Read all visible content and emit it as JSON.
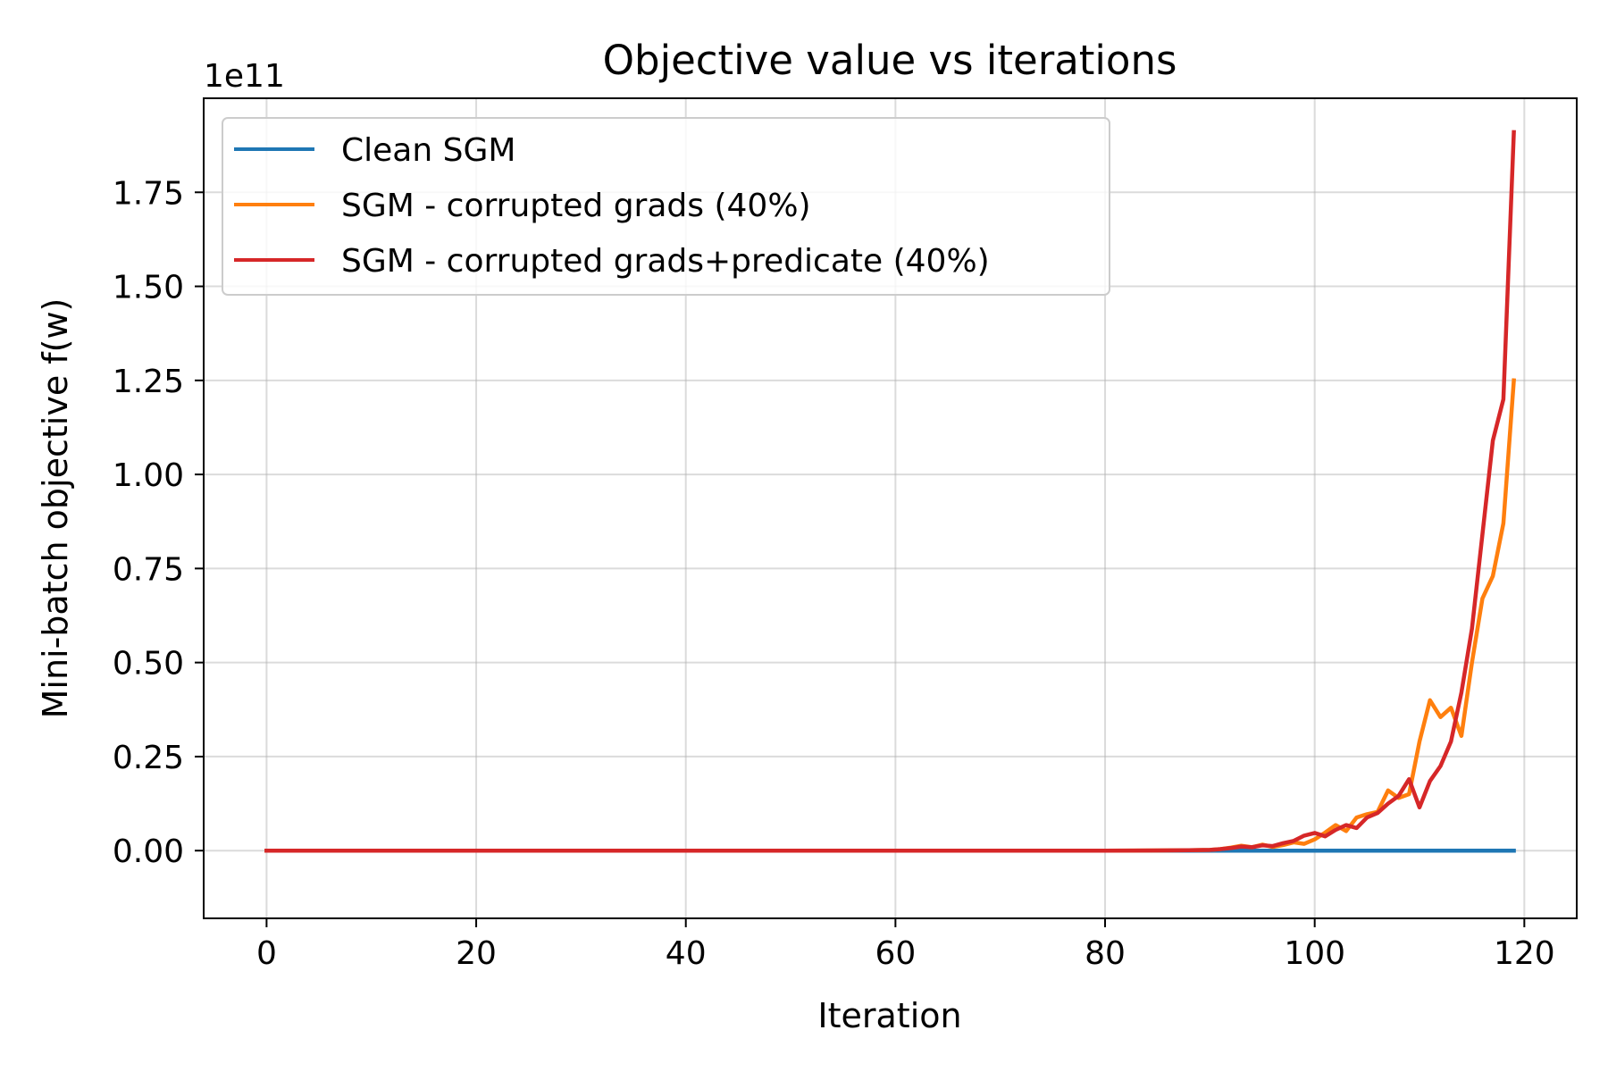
{
  "chart_data": {
    "type": "line",
    "title": "Objective value vs iterations",
    "xlabel": "Iteration",
    "ylabel": "Mini-batch objective f(w)",
    "y_offset_label": "1e11",
    "y_scale": "1e11",
    "xlim": [
      -6,
      125
    ],
    "ylim": [
      -0.18,
      2.0
    ],
    "xticks": [
      0,
      20,
      40,
      60,
      80,
      100,
      120
    ],
    "yticks": [
      0.0,
      0.25,
      0.5,
      0.75,
      1.0,
      1.25,
      1.5,
      1.75
    ],
    "xtick_labels": [
      "0",
      "20",
      "40",
      "60",
      "80",
      "100",
      "120"
    ],
    "ytick_labels": [
      "0.00",
      "0.25",
      "0.50",
      "0.75",
      "1.00",
      "1.25",
      "1.50",
      "1.75"
    ],
    "grid": true,
    "legend_position": "top-left",
    "series": [
      {
        "name": "Clean SGM",
        "color": "#1f77b4",
        "x": [
          0,
          119
        ],
        "y": [
          0,
          0
        ]
      },
      {
        "name": "SGM - corrupted grads (40%)",
        "color": "#ff7f0e",
        "x": [
          0,
          80,
          85,
          88,
          90,
          91,
          92,
          93,
          94,
          95,
          96,
          97,
          98,
          99,
          100,
          101,
          102,
          103,
          104,
          105,
          106,
          107,
          108,
          109,
          110,
          111,
          112,
          113,
          114,
          115,
          116,
          117,
          118,
          119
        ],
        "y": [
          0,
          0,
          0.0005,
          0.001,
          0.002,
          0.004,
          0.008,
          0.013,
          0.009,
          0.016,
          0.01,
          0.015,
          0.022,
          0.018,
          0.03,
          0.048,
          0.068,
          0.052,
          0.088,
          0.097,
          0.103,
          0.16,
          0.14,
          0.15,
          0.29,
          0.4,
          0.355,
          0.38,
          0.305,
          0.5,
          0.67,
          0.73,
          0.87,
          1.25
        ]
      },
      {
        "name": "SGM - corrupted grads+predicate (40%)",
        "color": "#d62728",
        "x": [
          0,
          80,
          85,
          88,
          90,
          91,
          92,
          93,
          94,
          95,
          96,
          97,
          98,
          99,
          100,
          101,
          102,
          103,
          104,
          105,
          106,
          107,
          108,
          109,
          110,
          111,
          112,
          113,
          114,
          115,
          116,
          117,
          118,
          119
        ],
        "y": [
          0,
          0,
          0.0005,
          0.001,
          0.002,
          0.004,
          0.007,
          0.011,
          0.009,
          0.014,
          0.012,
          0.02,
          0.026,
          0.04,
          0.047,
          0.038,
          0.055,
          0.068,
          0.06,
          0.088,
          0.1,
          0.125,
          0.145,
          0.19,
          0.115,
          0.185,
          0.225,
          0.29,
          0.42,
          0.59,
          0.84,
          1.09,
          1.2,
          1.91
        ]
      }
    ]
  }
}
